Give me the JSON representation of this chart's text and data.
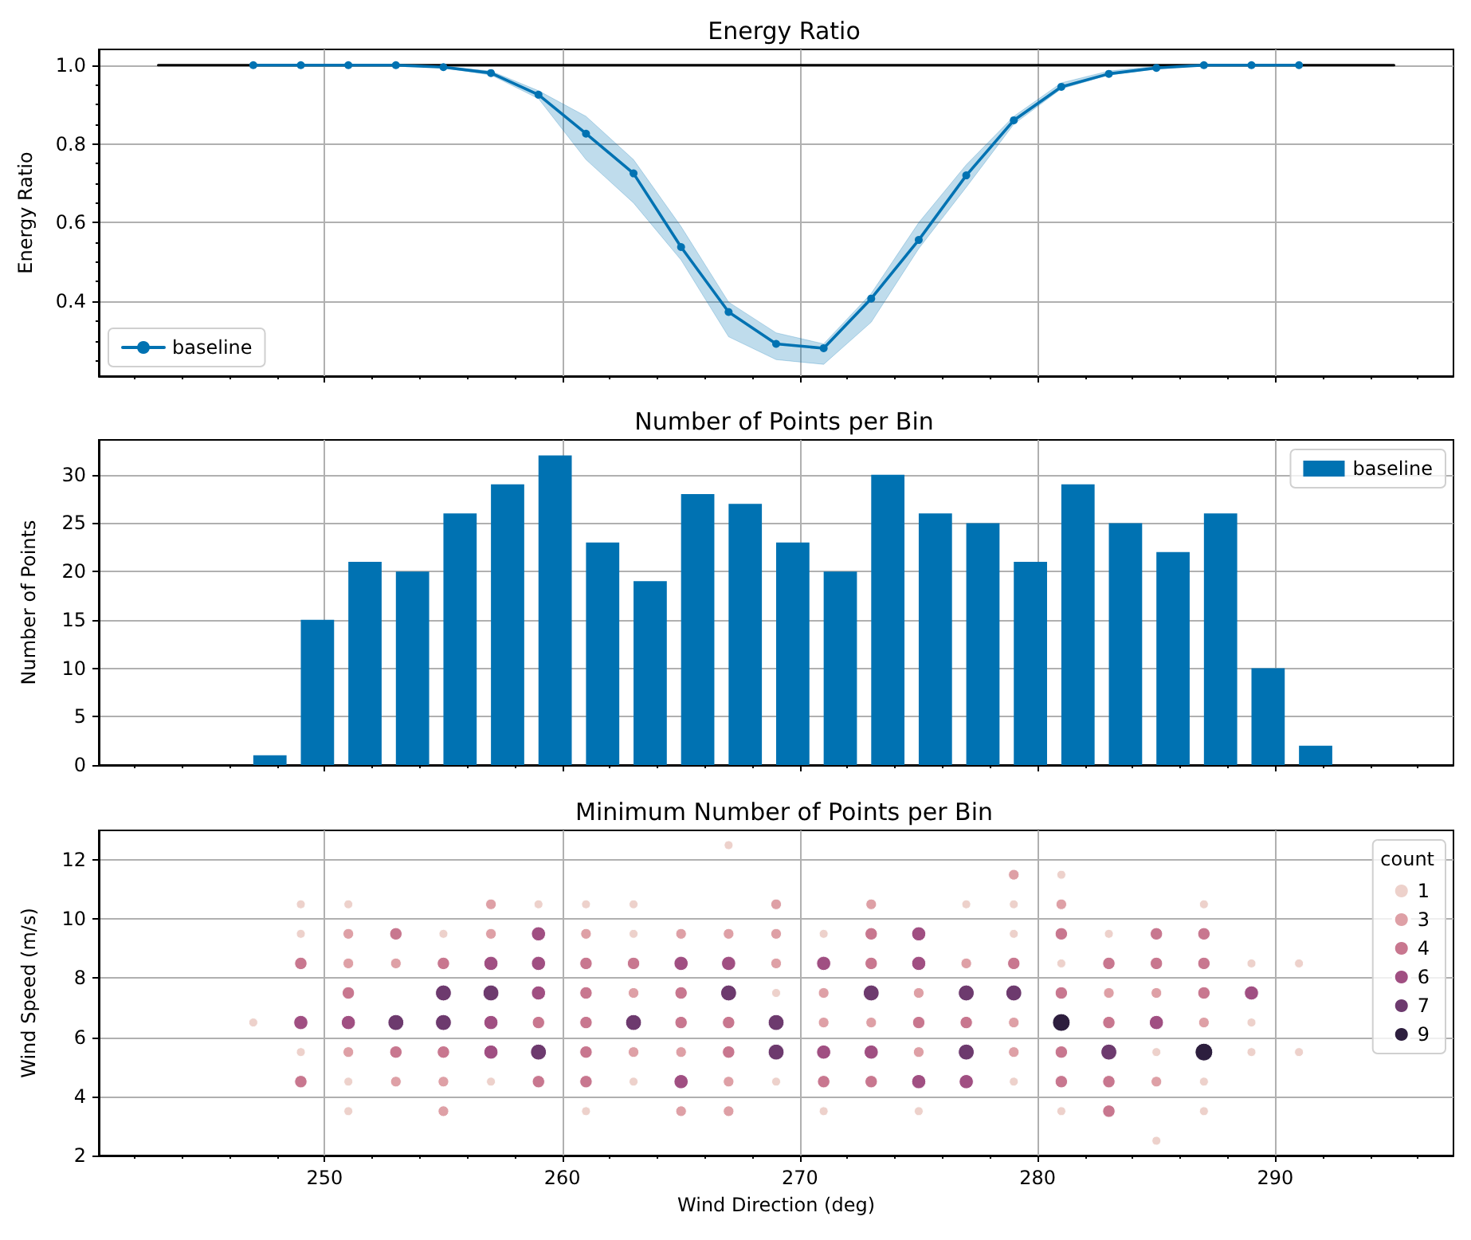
{
  "chart_data": [
    {
      "type": "line",
      "title": "Energy Ratio",
      "ylabel": "Energy Ratio",
      "xlim": [
        240.5,
        297.5
      ],
      "xticks": [
        {
          "value": 242,
          "label": null
        },
        {
          "value": 244,
          "label": null
        },
        {
          "value": 246,
          "label": null
        },
        {
          "value": 248,
          "label": null
        },
        250,
        {
          "value": 252,
          "label": null
        },
        {
          "value": 254,
          "label": null
        },
        {
          "value": 256,
          "label": null
        },
        {
          "value": 258,
          "label": null
        },
        260,
        {
          "value": 262,
          "label": null
        },
        {
          "value": 264,
          "label": null
        },
        {
          "value": 266,
          "label": null
        },
        {
          "value": 268,
          "label": null
        },
        270,
        {
          "value": 272,
          "label": null
        },
        {
          "value": 274,
          "label": null
        },
        {
          "value": 276,
          "label": null
        },
        {
          "value": 278,
          "label": null
        },
        280,
        {
          "value": 282,
          "label": null
        },
        {
          "value": 284,
          "label": null
        },
        {
          "value": 286,
          "label": null
        },
        {
          "value": 288,
          "label": null
        },
        290,
        {
          "value": 292,
          "label": null
        },
        {
          "value": 294,
          "label": null
        },
        {
          "value": 296,
          "label": null
        }
      ],
      "ylim": [
        0.21,
        1.04
      ],
      "yticks": [
        {
          "value": 0.25,
          "label": null
        },
        {
          "value": 0.3,
          "label": null
        },
        {
          "value": 0.35,
          "label": null
        },
        0.4,
        {
          "value": 0.45,
          "label": null
        },
        {
          "value": 0.5,
          "label": null
        },
        {
          "value": 0.55,
          "label": null
        },
        0.6,
        {
          "value": 0.65,
          "label": null
        },
        {
          "value": 0.7,
          "label": null
        },
        {
          "value": 0.75,
          "label": null
        },
        0.8,
        {
          "value": 0.85,
          "label": null
        },
        {
          "value": 0.9,
          "label": null
        },
        {
          "value": 0.95,
          "label": null
        },
        {
          "value": 1,
          "label": "1.0"
        }
      ],
      "tick_labels": "y",
      "grid": true,
      "legend": "bottom left",
      "marker": "circle",
      "series": [
        {
          "color": "#000000",
          "marker": "none",
          "x": [
            243,
            295
          ],
          "values": [
            1,
            1
          ]
        },
        {
          "name": "baseline",
          "color": "#0072b2",
          "x": [
            247,
            249,
            251,
            253,
            255,
            257,
            259,
            261,
            263,
            265,
            267,
            269,
            271,
            273,
            275,
            277,
            279,
            281,
            283,
            285,
            287,
            289,
            291
          ],
          "values": [
            1,
            1,
            1,
            1,
            0.995,
            0.98,
            0.925,
            0.826,
            0.725,
            0.538,
            0.373,
            0.292,
            0.281,
            0.407,
            0.556,
            0.72,
            0.86,
            0.945,
            0.978,
            0.993,
            1,
            1,
            1
          ],
          "lower": [
            1,
            1,
            1,
            1,
            0.993,
            0.975,
            0.915,
            0.76,
            0.65,
            0.505,
            0.31,
            0.252,
            0.24,
            0.347,
            0.534,
            0.69,
            0.85,
            0.94,
            0.975,
            0.99,
            1,
            1,
            1
          ],
          "upper": [
            1,
            1,
            1,
            1,
            0.997,
            0.985,
            0.935,
            0.87,
            0.76,
            0.59,
            0.398,
            0.32,
            0.292,
            0.42,
            0.6,
            0.747,
            0.87,
            0.955,
            0.985,
            0.997,
            1,
            1,
            1
          ]
        }
      ]
    },
    {
      "type": "bar",
      "title": "Number of Points per Bin",
      "ylabel": "Number of Points",
      "xlim": [
        240.5,
        297.5
      ],
      "xticks": [
        {
          "value": 242,
          "label": null
        },
        {
          "value": 244,
          "label": null
        },
        {
          "value": 246,
          "label": null
        },
        {
          "value": 248,
          "label": null
        },
        250,
        {
          "value": 252,
          "label": null
        },
        {
          "value": 254,
          "label": null
        },
        {
          "value": 256,
          "label": null
        },
        {
          "value": 258,
          "label": null
        },
        260,
        {
          "value": 262,
          "label": null
        },
        {
          "value": 264,
          "label": null
        },
        {
          "value": 266,
          "label": null
        },
        {
          "value": 268,
          "label": null
        },
        270,
        {
          "value": 272,
          "label": null
        },
        {
          "value": 274,
          "label": null
        },
        {
          "value": 276,
          "label": null
        },
        {
          "value": 278,
          "label": null
        },
        280,
        {
          "value": 282,
          "label": null
        },
        {
          "value": 284,
          "label": null
        },
        {
          "value": 286,
          "label": null
        },
        {
          "value": 288,
          "label": null
        },
        290,
        {
          "value": 292,
          "label": null
        },
        {
          "value": 294,
          "label": null
        },
        {
          "value": 296,
          "label": null
        }
      ],
      "ylim": [
        0,
        33.6
      ],
      "yticks": [
        0,
        5,
        10,
        15,
        20,
        25,
        30
      ],
      "tick_labels": "y",
      "grid": true,
      "legend": "top right",
      "series": [
        {
          "name": "baseline",
          "color": "#0072b2",
          "x": [
            247.7,
            249.7,
            251.7,
            253.7,
            255.7,
            257.7,
            259.7,
            261.7,
            263.7,
            265.7,
            267.7,
            269.7,
            271.7,
            273.7,
            275.7,
            277.7,
            279.7,
            281.7,
            283.7,
            285.7,
            287.7,
            289.7,
            291.7
          ],
          "values": [
            1,
            15,
            21,
            20,
            26,
            29,
            32,
            23,
            19,
            28,
            27,
            23,
            20,
            30,
            26,
            25,
            21,
            29,
            25,
            22,
            26,
            10,
            2
          ]
        }
      ]
    },
    {
      "type": "scatter",
      "title": "Minimum Number of Points per Bin",
      "xlabel": "Wind Direction (deg)",
      "ylabel": "Wind Speed (m/s)",
      "legend_title": "count",
      "xlim": [
        240.5,
        297.5
      ],
      "xticks": [
        {
          "value": 242,
          "label": null
        },
        {
          "value": 244,
          "label": null
        },
        {
          "value": 246,
          "label": null
        },
        {
          "value": 248,
          "label": null
        },
        250,
        {
          "value": 252,
          "label": null
        },
        {
          "value": 254,
          "label": null
        },
        {
          "value": 256,
          "label": null
        },
        {
          "value": 258,
          "label": null
        },
        260,
        {
          "value": 262,
          "label": null
        },
        {
          "value": 264,
          "label": null
        },
        {
          "value": 266,
          "label": null
        },
        {
          "value": 268,
          "label": null
        },
        270,
        {
          "value": 272,
          "label": null
        },
        {
          "value": 274,
          "label": null
        },
        {
          "value": 276,
          "label": null
        },
        {
          "value": 278,
          "label": null
        },
        280,
        {
          "value": 282,
          "label": null
        },
        {
          "value": 284,
          "label": null
        },
        {
          "value": 286,
          "label": null
        },
        {
          "value": 288,
          "label": null
        },
        290,
        {
          "value": 292,
          "label": null
        },
        {
          "value": 294,
          "label": null
        },
        {
          "value": 296,
          "label": null
        }
      ],
      "ylim": [
        2,
        13
      ],
      "yticks": [
        2,
        4,
        6,
        8,
        10,
        12
      ],
      "grid": true,
      "legend": "top right",
      "marker": "circle",
      "series": [
        {
          "name": "1",
          "color": "#edd1cb",
          "x": [
            247,
            249,
            249,
            249,
            251,
            251,
            251,
            255,
            257,
            259,
            261,
            261,
            263,
            263,
            263,
            267,
            269,
            269,
            271,
            271,
            275,
            277,
            279,
            279,
            279,
            281,
            281,
            281,
            283,
            285,
            285,
            287,
            287,
            287,
            289,
            289,
            289,
            291,
            291
          ],
          "values": [
            6.5,
            10.5,
            9.5,
            5.5,
            10.5,
            4.5,
            3.5,
            9.5,
            4.5,
            10.5,
            10.5,
            3.5,
            10.5,
            9.5,
            4.5,
            12.5,
            7.5,
            4.5,
            9.5,
            3.5,
            3.5,
            10.5,
            10.5,
            9.5,
            4.5,
            11.5,
            8.5,
            3.5,
            9.5,
            5.5,
            2.5,
            10.5,
            4.5,
            3.5,
            8.5,
            6.5,
            5.5,
            8.5,
            5.5
          ]
        },
        {
          "name": "3",
          "color": "#dea0a6",
          "x": [
            251,
            251,
            251,
            253,
            253,
            255,
            255,
            257,
            257,
            261,
            263,
            263,
            265,
            265,
            265,
            267,
            267,
            267,
            269,
            269,
            269,
            271,
            271,
            273,
            273,
            275,
            275,
            277,
            279,
            279,
            279,
            281,
            283,
            285,
            285,
            287
          ],
          "values": [
            9.5,
            8.5,
            5.5,
            8.5,
            4.5,
            4.5,
            3.5,
            10.5,
            9.5,
            9.5,
            7.5,
            5.5,
            9.5,
            5.5,
            3.5,
            9.5,
            4.5,
            3.5,
            10.5,
            9.5,
            8.5,
            7.5,
            6.5,
            10.5,
            6.5,
            7.5,
            5.5,
            8.5,
            11.5,
            6.5,
            5.5,
            10.5,
            7.5,
            7.5,
            4.5,
            6.5
          ]
        },
        {
          "name": "4",
          "color": "#c8778f",
          "x": [
            249,
            249,
            251,
            253,
            253,
            255,
            255,
            259,
            259,
            261,
            261,
            261,
            261,
            261,
            263,
            265,
            265,
            267,
            267,
            271,
            273,
            273,
            273,
            275,
            277,
            279,
            281,
            281,
            281,
            281,
            283,
            283,
            283,
            283,
            285,
            285,
            287,
            287,
            287
          ],
          "values": [
            8.5,
            4.5,
            7.5,
            9.5,
            5.5,
            8.5,
            5.5,
            6.5,
            4.5,
            8.5,
            7.5,
            6.5,
            5.5,
            4.5,
            8.5,
            7.5,
            6.5,
            6.5,
            5.5,
            4.5,
            9.5,
            8.5,
            4.5,
            6.5,
            6.5,
            8.5,
            9.5,
            7.5,
            5.5,
            4.5,
            8.5,
            6.5,
            4.5,
            3.5,
            9.5,
            8.5,
            9.5,
            8.5,
            7.5
          ]
        },
        {
          "name": "6",
          "color": "#a04f82",
          "x": [
            249,
            251,
            257,
            257,
            257,
            259,
            259,
            259,
            265,
            265,
            267,
            271,
            271,
            273,
            275,
            275,
            275,
            277,
            285,
            289
          ],
          "values": [
            6.5,
            6.5,
            8.5,
            6.5,
            5.5,
            9.5,
            8.5,
            7.5,
            8.5,
            4.5,
            8.5,
            8.5,
            5.5,
            5.5,
            9.5,
            8.5,
            4.5,
            4.5,
            6.5,
            7.5
          ]
        },
        {
          "name": "7",
          "color": "#6d3a6e",
          "x": [
            253,
            255,
            255,
            257,
            259,
            263,
            267,
            269,
            269,
            273,
            277,
            277,
            279,
            283
          ],
          "values": [
            6.5,
            7.5,
            6.5,
            7.5,
            5.5,
            6.5,
            7.5,
            6.5,
            5.5,
            7.5,
            7.5,
            5.5,
            7.5,
            5.5
          ]
        },
        {
          "name": "9",
          "color": "#2d1e3e",
          "x": [
            281,
            287
          ],
          "values": [
            6.5,
            5.5
          ]
        }
      ]
    }
  ]
}
